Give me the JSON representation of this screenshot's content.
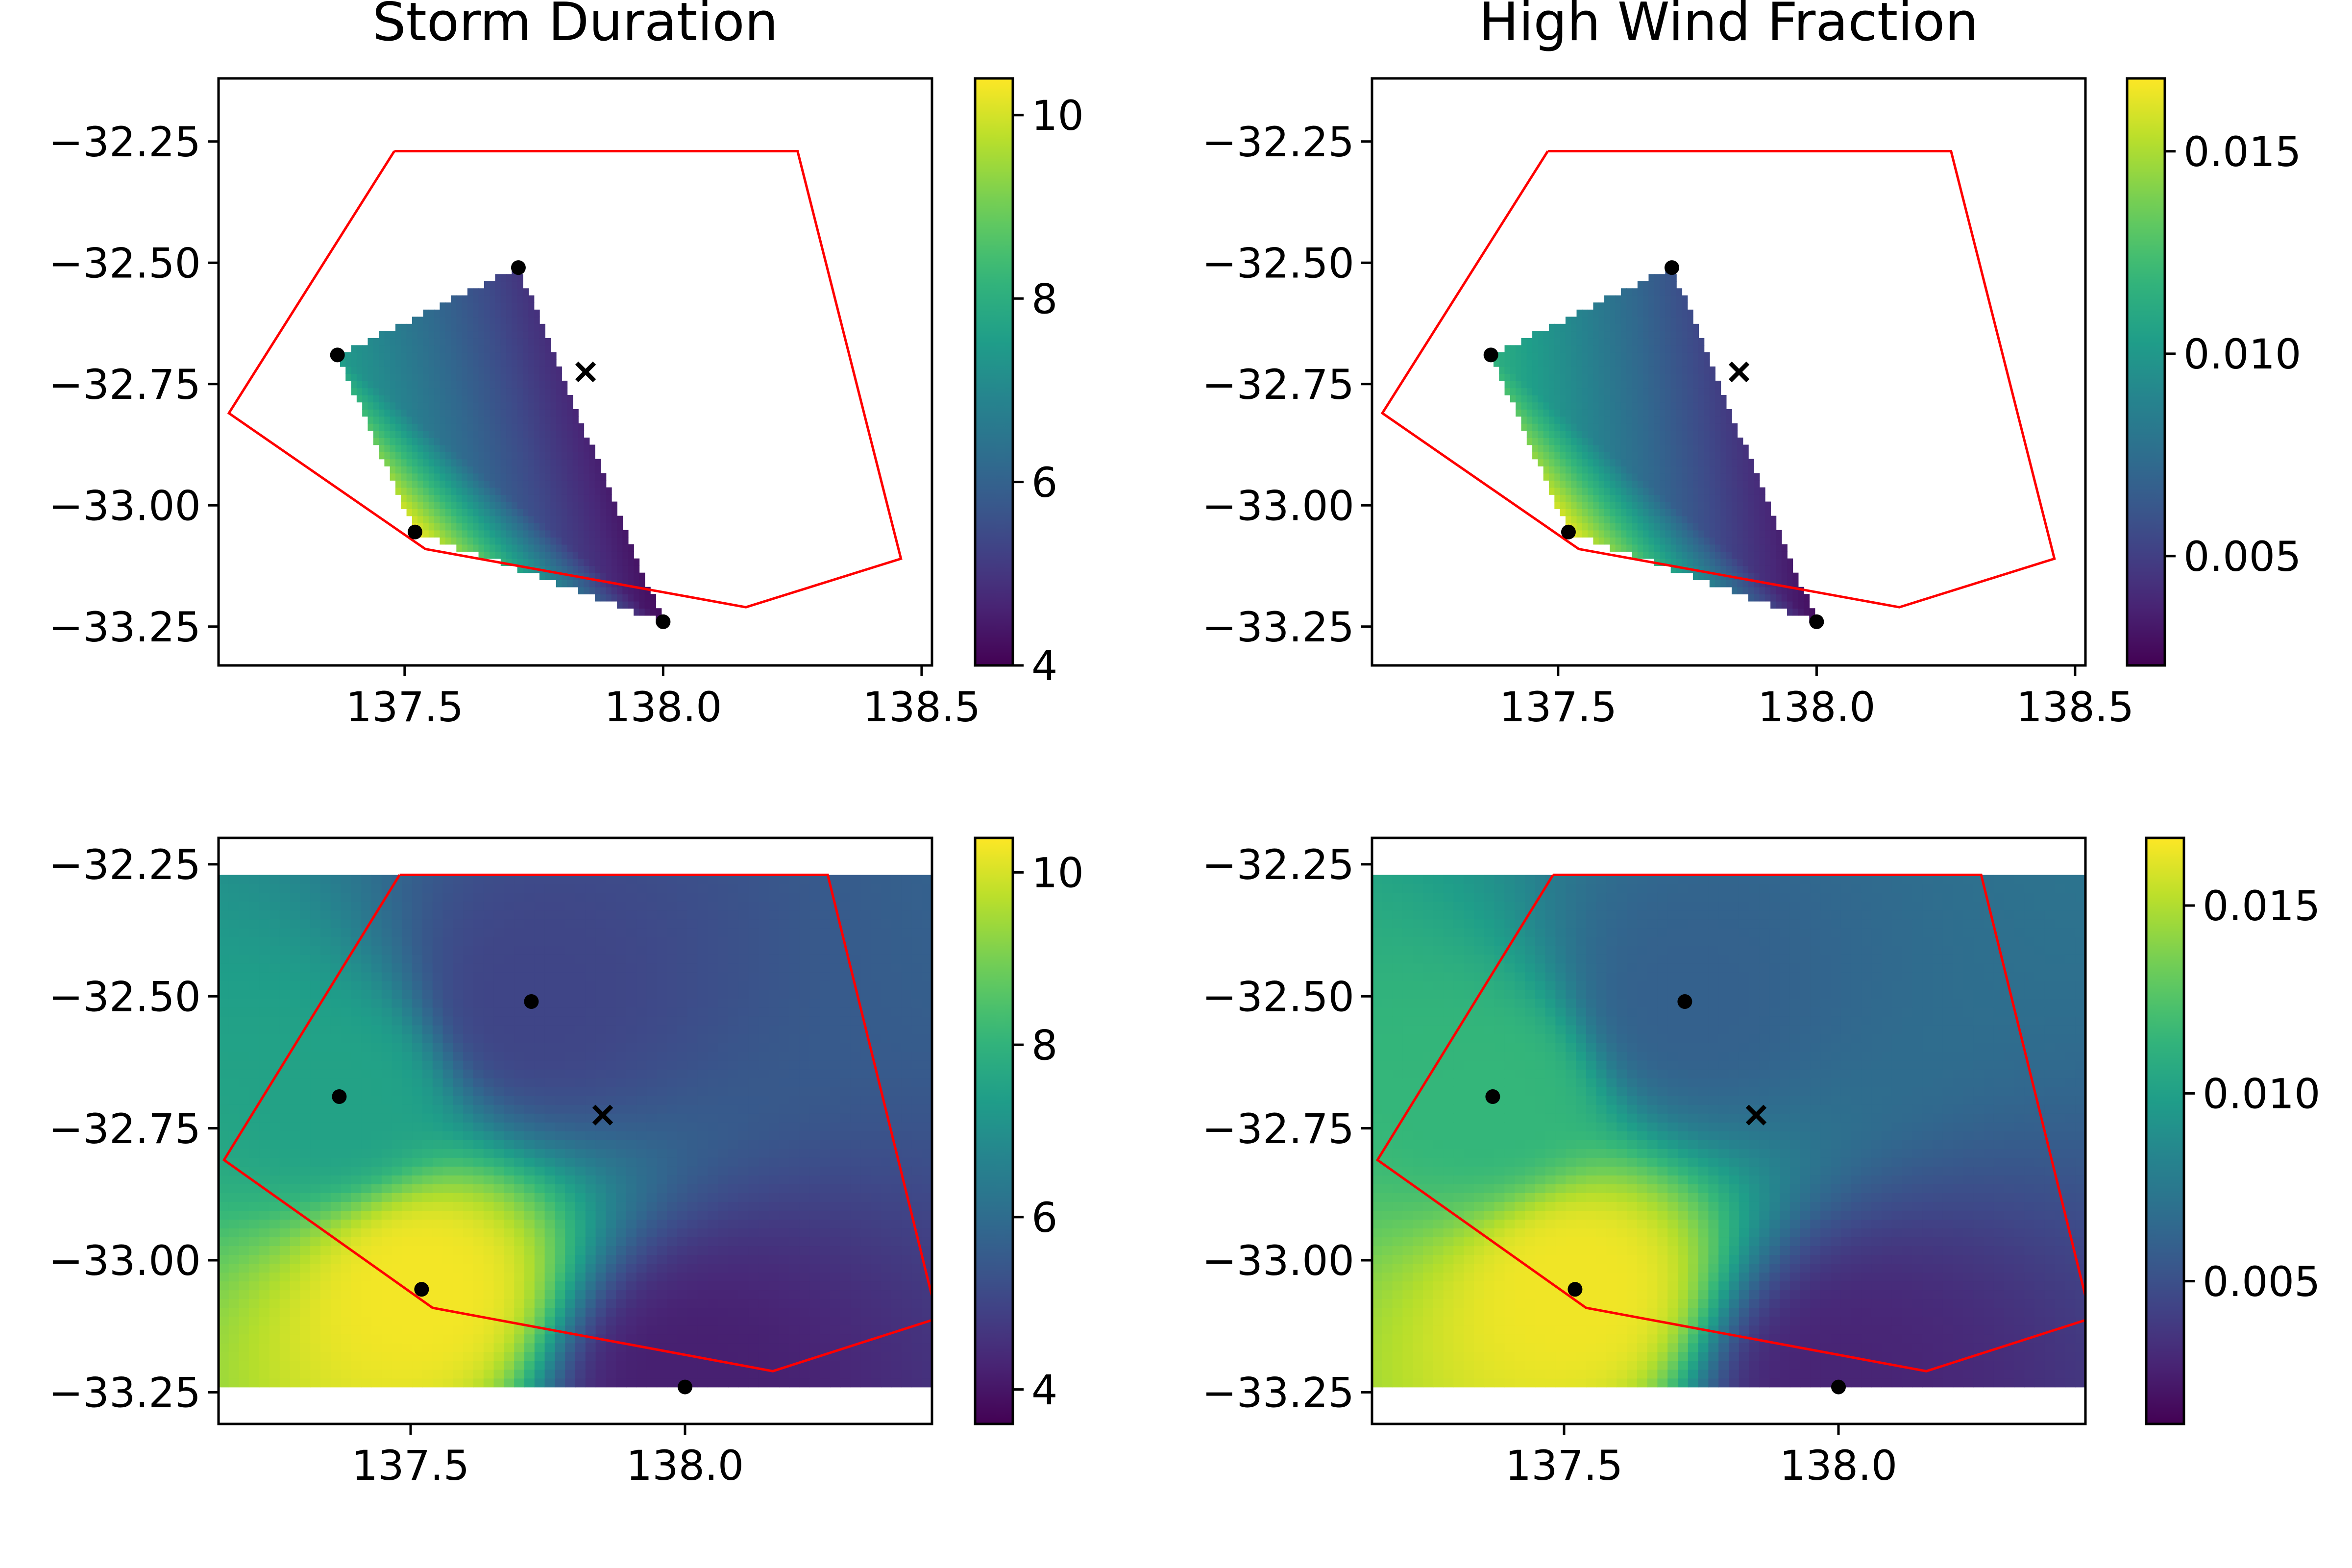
{
  "figure": {
    "columns": [
      {
        "title": "Storm Duration"
      },
      {
        "title": "High Wind Fraction"
      }
    ]
  },
  "chart_data": [
    {
      "type": "heatmap",
      "title": "Storm Duration",
      "method": "masked-triangle",
      "xlim": [
        137.14,
        138.52
      ],
      "ylim": [
        -33.33,
        -32.12
      ],
      "xticks": [
        137.5,
        138.0,
        138.5
      ],
      "yticks": [
        -32.25,
        -32.5,
        -32.75,
        -33.0,
        -33.25
      ],
      "colorbar": {
        "min": 4,
        "max": 10.4,
        "ticks": [
          4,
          6,
          8,
          10
        ],
        "colormap": "viridis"
      }
    },
    {
      "type": "heatmap",
      "title": "High Wind Fraction",
      "method": "masked-triangle",
      "xlim": [
        137.14,
        138.52
      ],
      "ylim": [
        -33.33,
        -32.12
      ],
      "xticks": [
        137.5,
        138.0,
        138.5
      ],
      "yticks": [
        -32.25,
        -32.5,
        -32.75,
        -33.0,
        -33.25
      ],
      "colorbar": {
        "min": 0.0023,
        "max": 0.0168,
        "ticks": [
          "0.005",
          "0.010",
          "0.015"
        ],
        "tick_values": [
          0.005,
          0.01,
          0.015
        ],
        "colormap": "viridis"
      }
    },
    {
      "type": "heatmap",
      "title": "",
      "method": "full-grid",
      "xlim": [
        137.15,
        138.45
      ],
      "ylim": [
        -33.31,
        -32.2
      ],
      "grid_extent_y": [
        -33.24,
        -32.27
      ],
      "xticks": [
        137.5,
        138.0
      ],
      "yticks": [
        -32.25,
        -32.5,
        -32.75,
        -33.0,
        -33.25
      ],
      "colorbar": {
        "min": 3.6,
        "max": 10.4,
        "ticks": [
          4,
          6,
          8,
          10
        ],
        "colormap": "viridis"
      }
    },
    {
      "type": "heatmap",
      "title": "",
      "method": "full-grid",
      "xlim": [
        137.15,
        138.45
      ],
      "ylim": [
        -33.31,
        -32.2
      ],
      "grid_extent_y": [
        -33.24,
        -32.27
      ],
      "xticks": [
        137.5,
        138.0
      ],
      "yticks": [
        -32.25,
        -32.5,
        -32.75,
        -33.0,
        -33.25
      ],
      "colorbar": {
        "min": 0.0012,
        "max": 0.0168,
        "ticks": [
          "0.005",
          "0.010",
          "0.015"
        ],
        "tick_values": [
          0.005,
          0.01,
          0.015
        ],
        "colormap": "viridis"
      }
    }
  ],
  "stations": [
    {
      "lon": 137.72,
      "lat": -32.51,
      "duration": 5.0,
      "wind": 0.006
    },
    {
      "lon": 137.37,
      "lat": -32.69,
      "duration": 7.5,
      "wind": 0.0115
    },
    {
      "lon": 137.52,
      "lat": -33.055,
      "duration": 10.3,
      "wind": 0.0165
    },
    {
      "lon": 138.0,
      "lat": -33.24,
      "duration": 4.2,
      "wind": 0.0028
    }
  ],
  "target_point": {
    "lon": 137.85,
    "lat": -32.725,
    "marker": "x"
  },
  "boundary_polygon": [
    [
      137.48,
      -32.27
    ],
    [
      138.26,
      -32.27
    ],
    [
      138.46,
      -33.11
    ],
    [
      138.16,
      -33.21
    ],
    [
      137.54,
      -33.09
    ],
    [
      137.16,
      -32.81
    ],
    [
      137.48,
      -32.27
    ]
  ],
  "colors": {
    "boundary": "#ff0000",
    "markers": "#000000",
    "axes": "#000000",
    "background": "#ffffff"
  }
}
